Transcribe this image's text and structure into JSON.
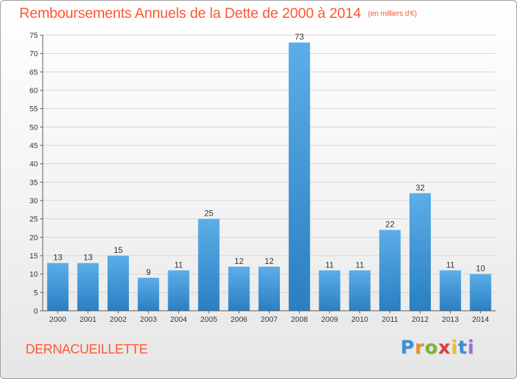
{
  "header": {
    "title": "Remboursements Annuels de la Dette de 2000 à 2014",
    "unit": "(en milliers d'€)"
  },
  "commune": "DERNACUEILLETTE",
  "logo": {
    "letters": [
      "P",
      "r",
      "o",
      "x",
      "i",
      "t",
      "i"
    ],
    "colors": [
      "#3a8fd8",
      "#f08a2c",
      "#76b82a",
      "#e23a3a",
      "#f0c020",
      "#3a8fd8",
      "#9a6ad8"
    ]
  },
  "colors": {
    "bar_light": "#5caee8",
    "bar_dark": "#2a7fc2",
    "grid": "#d4d4d4",
    "axis": "#555555"
  },
  "chart_data": {
    "type": "bar",
    "categories": [
      "2000",
      "2001",
      "2002",
      "2003",
      "2004",
      "2005",
      "2006",
      "2007",
      "2008",
      "2009",
      "2010",
      "2011",
      "2012",
      "2013",
      "2014"
    ],
    "values": [
      13,
      13,
      15,
      9,
      11,
      25,
      12,
      12,
      73,
      11,
      11,
      22,
      32,
      11,
      10
    ],
    "ylim": [
      0,
      75
    ],
    "yticks": [
      0,
      5,
      10,
      15,
      20,
      25,
      30,
      35,
      40,
      45,
      50,
      55,
      60,
      65,
      70,
      75
    ],
    "grid": true
  }
}
